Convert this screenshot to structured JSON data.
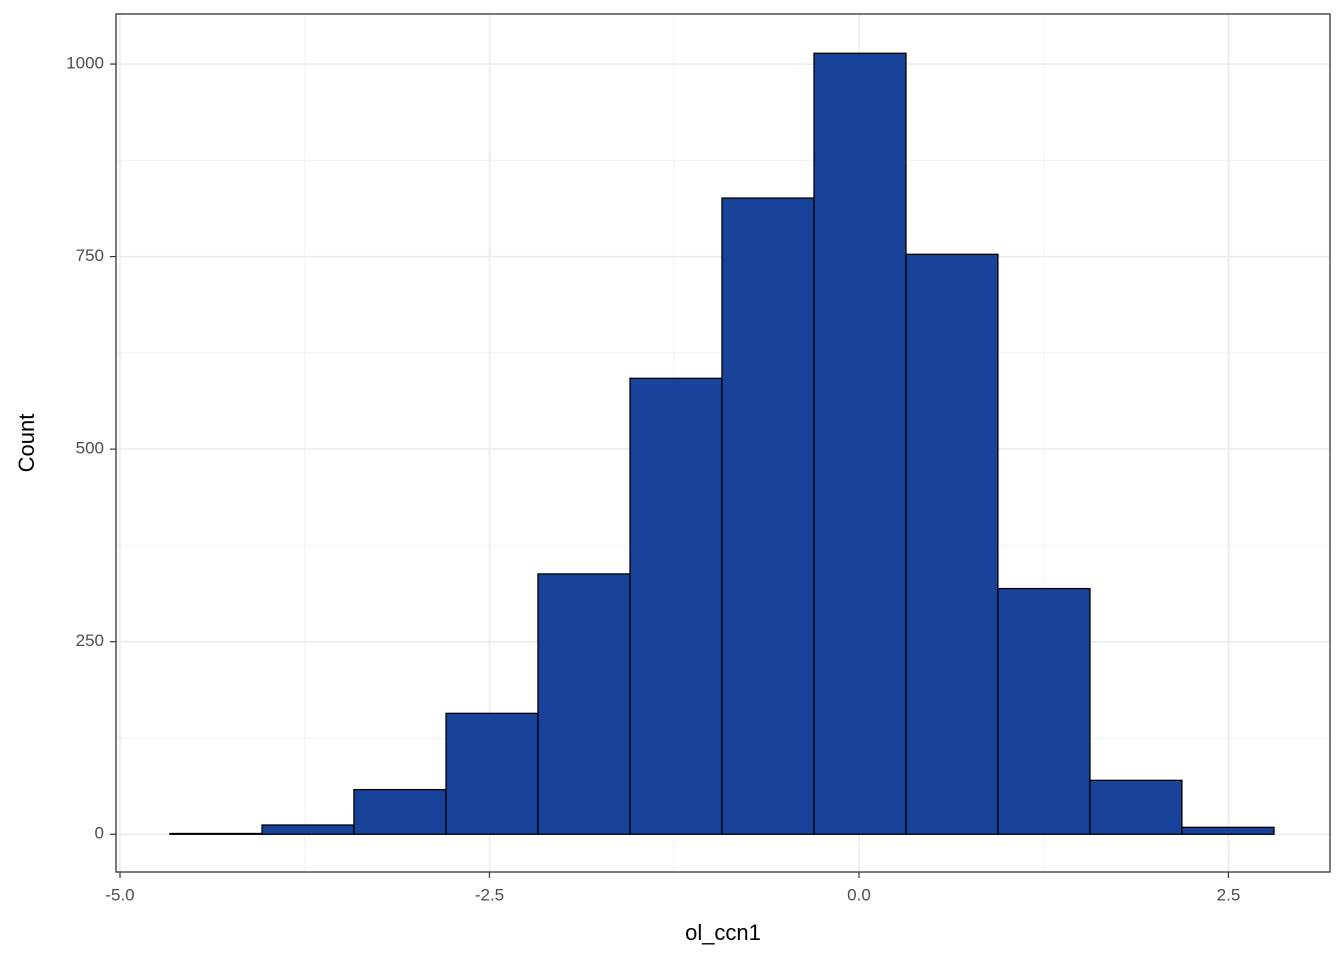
{
  "chart_data": {
    "type": "histogram",
    "x_label": "ol_ccn1",
    "y_label": "Count",
    "bins": [
      -4.662,
      -4.039,
      -3.417,
      -2.794,
      -2.172,
      -1.549,
      -0.927,
      -0.304,
      0.318,
      0.94,
      1.563,
      2.185,
      2.808
    ],
    "counts": [
      1,
      12,
      58,
      157,
      338,
      592,
      826,
      1014,
      753,
      319,
      70,
      9
    ],
    "color": "#19439a",
    "edge_color": "#000000",
    "xlim": [
      -5.027,
      3.187
    ],
    "xticks": [
      {
        "value": -5,
        "label": "-5.0"
      },
      {
        "value": -2.5,
        "label": "-2.5"
      },
      {
        "value": 0,
        "label": "0.0"
      },
      {
        "value": 2.5,
        "label": "2.5"
      }
    ],
    "ylim": [
      -49,
      1065
    ],
    "yticks": [
      0,
      250,
      500,
      750,
      1000
    ],
    "grid": true
  }
}
